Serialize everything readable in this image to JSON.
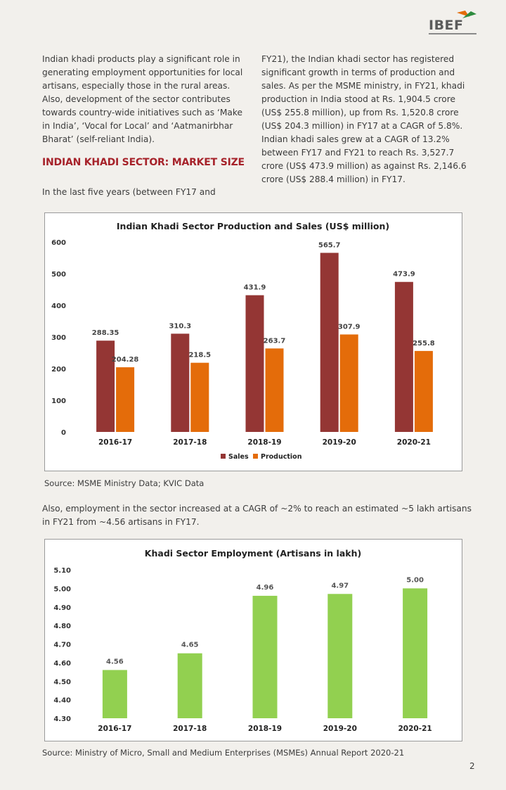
{
  "header": {
    "logo_text": "IBEF"
  },
  "body": {
    "para1": "Indian khadi products play a significant role in generating employment opportunities for local artisans, especially those in the rural areas. Also, development of the sector contributes towards country-wide initiatives such as ‘Make in India’, ‘Vocal for Local’ and ‘Aatmanirbhar Bharat’ (self-reliant India).",
    "heading": "INDIAN KHADI SECTOR: MARKET SIZE",
    "para2": "In the last five years (between FY17 and",
    "para2_cont": "FY21), the Indian khadi sector has registered significant growth in terms of production and sales. As per the MSME ministry, in FY21, khadi production in India stood at Rs. 1,904.5 crore (US$ 255.8 million), up from Rs. 1,520.8 crore (US$ 204.3 million) in FY17 at a CAGR of 5.8%. Indian khadi sales grew at a CAGR of 13.2% between FY17 and FY21 to reach Rs. 3,527.7 crore (US$ 473.9 million) as against Rs. 2,146.6 crore (US$ 288.4 million) in FY17.",
    "source1": "Source: MSME Ministry Data; KVIC Data",
    "para3": "Also, employment in the sector increased at a CAGR of ~2% to reach an estimated ~5 lakh artisans in FY21 from ~4.56 artisans in FY17.",
    "source2": "Source: Ministry of Micro, Small and Medium Enterprises (MSMEs) Annual Report 2020-21",
    "page_number": "2"
  },
  "colors": {
    "sales": "#943634",
    "production": "#e46c0a",
    "employment": "#92d050",
    "heading": "#a6222a"
  },
  "chart_data": [
    {
      "type": "bar",
      "title": "Indian Khadi Sector Production and Sales (US$ million)",
      "categories": [
        "2016-17",
        "2017-18",
        "2018-19",
        "2019-20",
        "2020-21"
      ],
      "series": [
        {
          "name": "Sales",
          "values": [
            288.35,
            310.3,
            431.9,
            565.7,
            473.9
          ],
          "labels": [
            "288.35",
            "310.3",
            "431.9",
            "565.7",
            "473.9"
          ]
        },
        {
          "name": "Production",
          "values": [
            204.28,
            218.5,
            263.7,
            307.9,
            255.8
          ],
          "labels": [
            "204.28",
            "218.5",
            "263.7",
            "307.9",
            "255.8"
          ]
        }
      ],
      "ylim": [
        0,
        600
      ],
      "yticks": [
        "0",
        "100",
        "200",
        "300",
        "400",
        "500",
        "600"
      ],
      "legend": "bottom"
    },
    {
      "type": "bar",
      "title": "Khadi Sector Employment (Artisans in lakh)",
      "categories": [
        "2016-17",
        "2017-18",
        "2018-19",
        "2019-20",
        "2020-21"
      ],
      "values": [
        4.56,
        4.65,
        4.96,
        4.97,
        5.0
      ],
      "labels": [
        "4.56",
        "4.65",
        "4.96",
        "4.97",
        "5.00"
      ],
      "ylim": [
        4.3,
        5.1
      ],
      "yticks": [
        "4.30",
        "4.40",
        "4.50",
        "4.60",
        "4.70",
        "4.80",
        "4.90",
        "5.00",
        "5.10"
      ]
    }
  ]
}
